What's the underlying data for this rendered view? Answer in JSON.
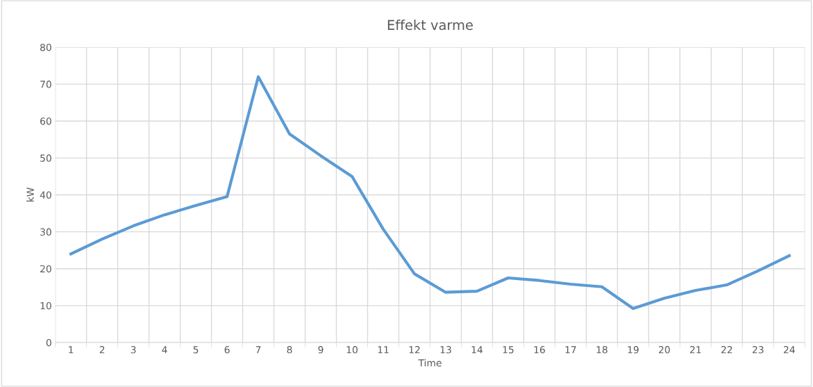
{
  "chart_data": {
    "type": "line",
    "title": "Effekt varme",
    "xlabel": "Time",
    "ylabel": "kW",
    "categories": [
      "1",
      "2",
      "3",
      "4",
      "5",
      "6",
      "7",
      "8",
      "9",
      "10",
      "11",
      "12",
      "13",
      "14",
      "15",
      "16",
      "17",
      "18",
      "19",
      "20",
      "21",
      "22",
      "23",
      "24"
    ],
    "series": [
      {
        "color": "#5b9bd5",
        "values": [
          24,
          28,
          31.6,
          34.6,
          37.1,
          39.5,
          72,
          56.5,
          50.6,
          45,
          30.7,
          18.6,
          13.6,
          13.9,
          17.5,
          16.8,
          15.8,
          15.1,
          9.2,
          12,
          14.1,
          15.6,
          19.4,
          23.5
        ]
      }
    ],
    "ylim": [
      0,
      80
    ],
    "yticks": [
      0,
      10,
      20,
      30,
      40,
      50,
      60,
      70,
      80
    ],
    "grid": true,
    "marker": "none",
    "line_style": "solid"
  }
}
